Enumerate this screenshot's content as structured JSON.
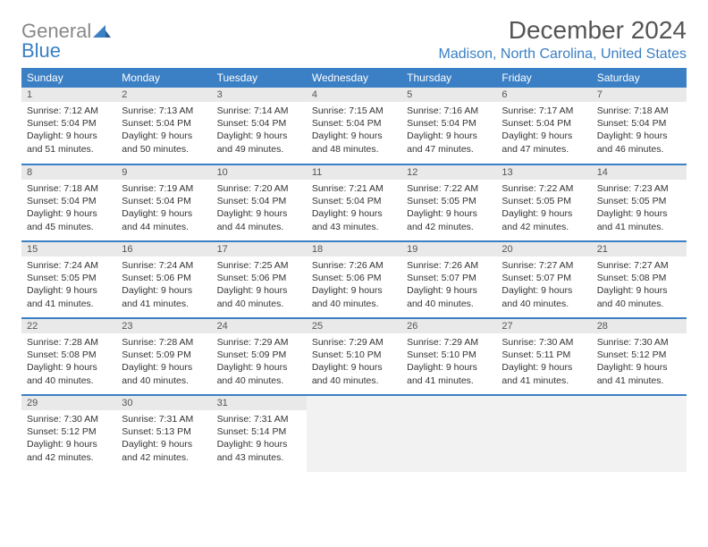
{
  "brand": {
    "gray": "General",
    "blue": "Blue"
  },
  "title": "December 2024",
  "location": "Madison, North Carolina, United States",
  "colors": {
    "accent": "#3b7fc4",
    "header_bg": "#3b7fc4",
    "header_fg": "#ffffff",
    "daynum_bg": "#e9e9e9",
    "rule": "#3b7fc4",
    "text": "#333333",
    "muted": "#888888",
    "empty_bg": "#f2f2f2",
    "background": "#ffffff"
  },
  "weekdays": [
    "Sunday",
    "Monday",
    "Tuesday",
    "Wednesday",
    "Thursday",
    "Friday",
    "Saturday"
  ],
  "grid": [
    [
      {
        "n": "1",
        "sr": "7:12 AM",
        "ss": "5:04 PM",
        "dl": "9 hours and 51 minutes."
      },
      {
        "n": "2",
        "sr": "7:13 AM",
        "ss": "5:04 PM",
        "dl": "9 hours and 50 minutes."
      },
      {
        "n": "3",
        "sr": "7:14 AM",
        "ss": "5:04 PM",
        "dl": "9 hours and 49 minutes."
      },
      {
        "n": "4",
        "sr": "7:15 AM",
        "ss": "5:04 PM",
        "dl": "9 hours and 48 minutes."
      },
      {
        "n": "5",
        "sr": "7:16 AM",
        "ss": "5:04 PM",
        "dl": "9 hours and 47 minutes."
      },
      {
        "n": "6",
        "sr": "7:17 AM",
        "ss": "5:04 PM",
        "dl": "9 hours and 47 minutes."
      },
      {
        "n": "7",
        "sr": "7:18 AM",
        "ss": "5:04 PM",
        "dl": "9 hours and 46 minutes."
      }
    ],
    [
      {
        "n": "8",
        "sr": "7:18 AM",
        "ss": "5:04 PM",
        "dl": "9 hours and 45 minutes."
      },
      {
        "n": "9",
        "sr": "7:19 AM",
        "ss": "5:04 PM",
        "dl": "9 hours and 44 minutes."
      },
      {
        "n": "10",
        "sr": "7:20 AM",
        "ss": "5:04 PM",
        "dl": "9 hours and 44 minutes."
      },
      {
        "n": "11",
        "sr": "7:21 AM",
        "ss": "5:04 PM",
        "dl": "9 hours and 43 minutes."
      },
      {
        "n": "12",
        "sr": "7:22 AM",
        "ss": "5:05 PM",
        "dl": "9 hours and 42 minutes."
      },
      {
        "n": "13",
        "sr": "7:22 AM",
        "ss": "5:05 PM",
        "dl": "9 hours and 42 minutes."
      },
      {
        "n": "14",
        "sr": "7:23 AM",
        "ss": "5:05 PM",
        "dl": "9 hours and 41 minutes."
      }
    ],
    [
      {
        "n": "15",
        "sr": "7:24 AM",
        "ss": "5:05 PM",
        "dl": "9 hours and 41 minutes."
      },
      {
        "n": "16",
        "sr": "7:24 AM",
        "ss": "5:06 PM",
        "dl": "9 hours and 41 minutes."
      },
      {
        "n": "17",
        "sr": "7:25 AM",
        "ss": "5:06 PM",
        "dl": "9 hours and 40 minutes."
      },
      {
        "n": "18",
        "sr": "7:26 AM",
        "ss": "5:06 PM",
        "dl": "9 hours and 40 minutes."
      },
      {
        "n": "19",
        "sr": "7:26 AM",
        "ss": "5:07 PM",
        "dl": "9 hours and 40 minutes."
      },
      {
        "n": "20",
        "sr": "7:27 AM",
        "ss": "5:07 PM",
        "dl": "9 hours and 40 minutes."
      },
      {
        "n": "21",
        "sr": "7:27 AM",
        "ss": "5:08 PM",
        "dl": "9 hours and 40 minutes."
      }
    ],
    [
      {
        "n": "22",
        "sr": "7:28 AM",
        "ss": "5:08 PM",
        "dl": "9 hours and 40 minutes."
      },
      {
        "n": "23",
        "sr": "7:28 AM",
        "ss": "5:09 PM",
        "dl": "9 hours and 40 minutes."
      },
      {
        "n": "24",
        "sr": "7:29 AM",
        "ss": "5:09 PM",
        "dl": "9 hours and 40 minutes."
      },
      {
        "n": "25",
        "sr": "7:29 AM",
        "ss": "5:10 PM",
        "dl": "9 hours and 40 minutes."
      },
      {
        "n": "26",
        "sr": "7:29 AM",
        "ss": "5:10 PM",
        "dl": "9 hours and 41 minutes."
      },
      {
        "n": "27",
        "sr": "7:30 AM",
        "ss": "5:11 PM",
        "dl": "9 hours and 41 minutes."
      },
      {
        "n": "28",
        "sr": "7:30 AM",
        "ss": "5:12 PM",
        "dl": "9 hours and 41 minutes."
      }
    ],
    [
      {
        "n": "29",
        "sr": "7:30 AM",
        "ss": "5:12 PM",
        "dl": "9 hours and 42 minutes."
      },
      {
        "n": "30",
        "sr": "7:31 AM",
        "ss": "5:13 PM",
        "dl": "9 hours and 42 minutes."
      },
      {
        "n": "31",
        "sr": "7:31 AM",
        "ss": "5:14 PM",
        "dl": "9 hours and 43 minutes."
      },
      null,
      null,
      null,
      null
    ]
  ],
  "labels": {
    "sunrise": "Sunrise:",
    "sunset": "Sunset:",
    "daylight": "Daylight:"
  }
}
